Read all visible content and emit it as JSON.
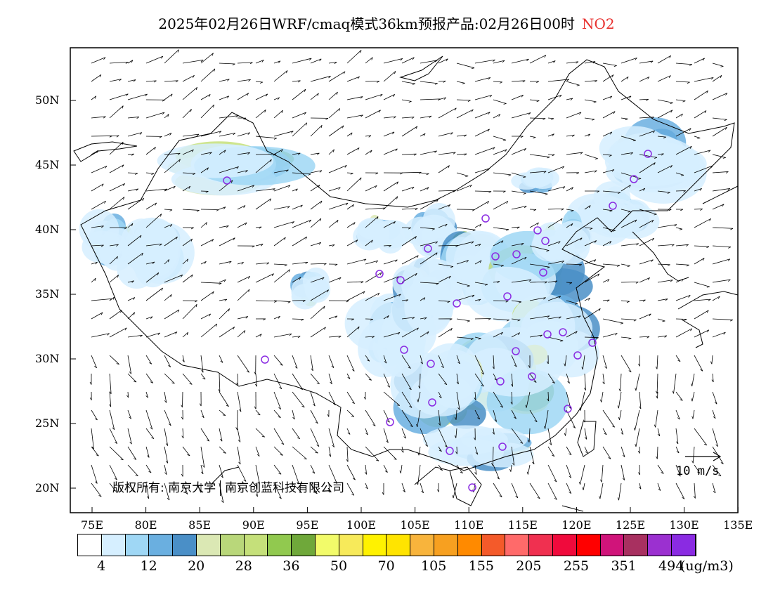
{
  "title": {
    "main": "2025年02月26日WRF/cmaq模式36km预报产品:02月26日00时",
    "species": "NO2"
  },
  "map": {
    "lat_ticks": [
      "50N",
      "45N",
      "40N",
      "35N",
      "30N",
      "25N",
      "20N"
    ],
    "lon_ticks": [
      "75E",
      "80E",
      "85E",
      "90E",
      "95E",
      "100E",
      "105E",
      "110E",
      "115E",
      "120E",
      "125E",
      "130E",
      "135E"
    ],
    "land_color": "#ffffff",
    "frame_color": "#000000",
    "station_marker_color": "#8a2be2",
    "copyright": {
      "prefix": "版权所有:",
      "org1": "南京大学",
      "org2": "南京创蓝科技有限公司"
    },
    "wind_reference_label": "10 m/s"
  },
  "colorbar": {
    "colors": [
      "#ffffff",
      "#d6efff",
      "#9fd7f5",
      "#6aafe0",
      "#4a8fc7",
      "#dbe8b4",
      "#b9d77a",
      "#c5e07a",
      "#91c94f",
      "#6fa83a",
      "#f2fb6a",
      "#f7ea5a",
      "#fff200",
      "#ffe400",
      "#f8b43c",
      "#f7a020",
      "#ff8a00",
      "#f45a2a",
      "#ff6a6a",
      "#f03050",
      "#f00a3c",
      "#ff0000",
      "#d0147a",
      "#a83060",
      "#9b30d0",
      "#8a2be2"
    ],
    "labels": [
      "4",
      "12",
      "20",
      "28",
      "36",
      "50",
      "70",
      "105",
      "155",
      "205",
      "255",
      "351",
      "494"
    ],
    "unit": "(ug/m3)"
  }
}
